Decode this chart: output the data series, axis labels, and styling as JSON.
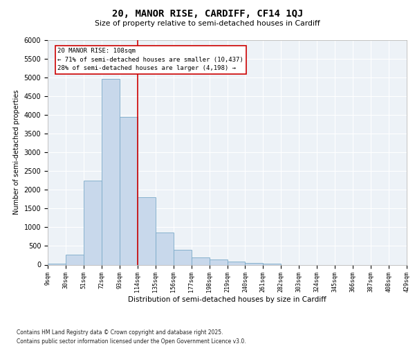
{
  "title_line1": "20, MANOR RISE, CARDIFF, CF14 1QJ",
  "title_line2": "Size of property relative to semi-detached houses in Cardiff",
  "xlabel": "Distribution of semi-detached houses by size in Cardiff",
  "ylabel": "Number of semi-detached properties",
  "bin_labels": [
    "9sqm",
    "30sqm",
    "51sqm",
    "72sqm",
    "93sqm",
    "114sqm",
    "135sqm",
    "156sqm",
    "177sqm",
    "198sqm",
    "219sqm",
    "240sqm",
    "261sqm",
    "282sqm",
    "303sqm",
    "324sqm",
    "345sqm",
    "366sqm",
    "387sqm",
    "408sqm",
    "429sqm"
  ],
  "bar_values": [
    30,
    260,
    2250,
    4950,
    3950,
    1800,
    850,
    400,
    200,
    130,
    80,
    50,
    30,
    0,
    0,
    0,
    0,
    0,
    0,
    0
  ],
  "bar_color": "#c8d8eb",
  "bar_edge_color": "#7aaac8",
  "ylim_max": 6000,
  "yticks": [
    0,
    500,
    1000,
    1500,
    2000,
    2500,
    3000,
    3500,
    4000,
    4500,
    5000,
    5500,
    6000
  ],
  "property_label": "20 MANOR RISE: 108sqm",
  "pct_smaller": 71,
  "count_smaller": 10437,
  "pct_larger": 28,
  "count_larger": 4198,
  "vline_color": "#cc0000",
  "bg_color": "#edf2f7",
  "grid_color": "#ffffff",
  "footnote1": "Contains HM Land Registry data © Crown copyright and database right 2025.",
  "footnote2": "Contains public sector information licensed under the Open Government Licence v3.0.",
  "vline_x_data": 5.0
}
